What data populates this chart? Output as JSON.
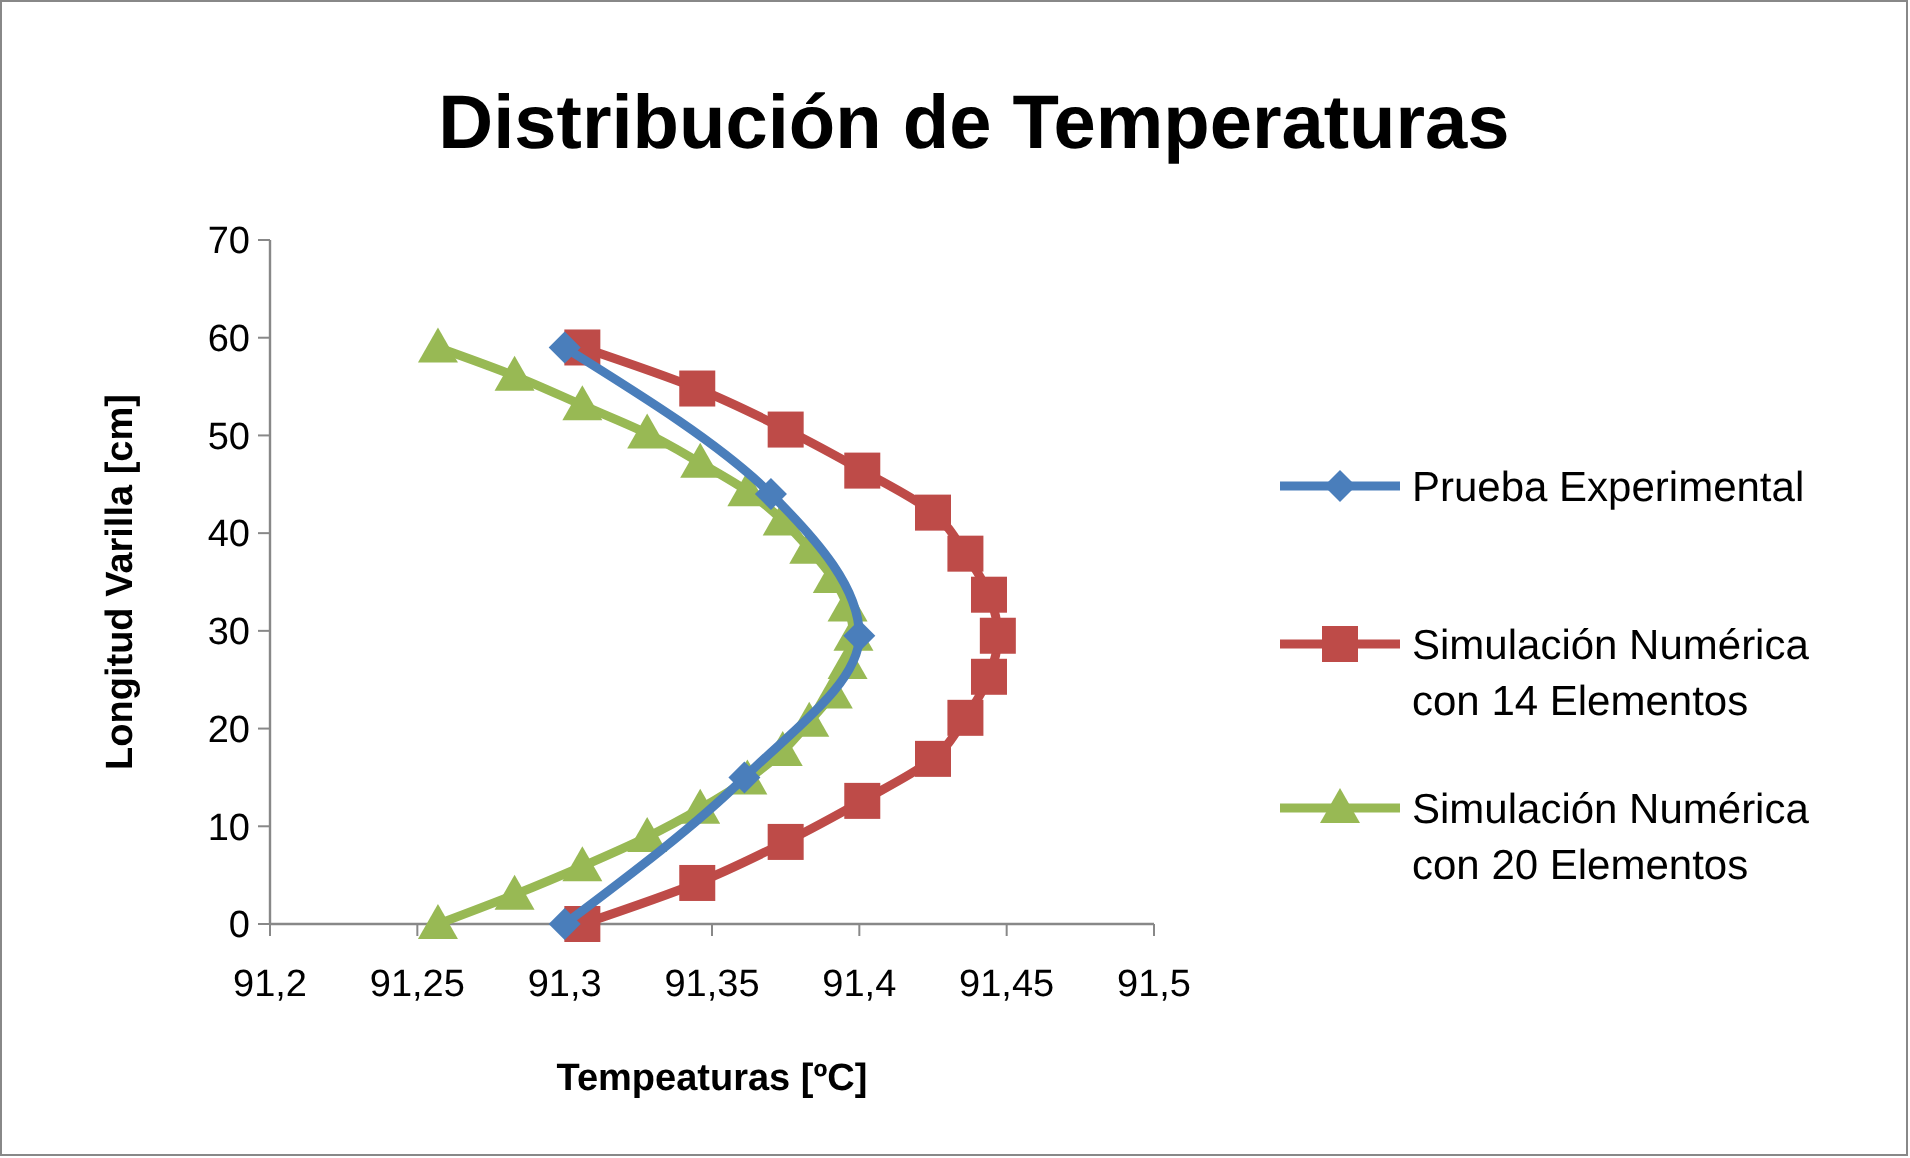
{
  "chart_data": {
    "type": "line",
    "title": "Distribución de Temperaturas",
    "xlabel": "Tempeaturas [ºC]",
    "ylabel": "Longitud Varilla [cm]",
    "xlim": [
      91.2,
      91.5
    ],
    "xticks": [
      {
        "value": 91.2,
        "label": "91,2"
      },
      {
        "value": 91.25,
        "label": "91,25"
      },
      {
        "value": 91.3,
        "label": "91,3"
      },
      {
        "value": 91.35,
        "label": "91,35"
      },
      {
        "value": 91.4,
        "label": "91,4"
      },
      {
        "value": 91.45,
        "label": "91,45"
      },
      {
        "value": 91.5,
        "label": "91,5"
      }
    ],
    "ylim": [
      0,
      70
    ],
    "yticks": [
      0,
      10,
      20,
      30,
      40,
      50,
      60,
      70
    ],
    "legend": "right",
    "series": [
      {
        "name": "Prueba Experimental",
        "color": "#4a7ebb",
        "marker": "diamond",
        "x": [
          91.3,
          91.361,
          91.4,
          91.37,
          91.3
        ],
        "values": [
          0,
          15,
          29.5,
          44,
          59
        ]
      },
      {
        "name": "Simulación Numérica con 14 Elementos",
        "color": "#be4b48",
        "marker": "square",
        "x": [
          91.306,
          91.345,
          91.375,
          91.401,
          91.425,
          91.436,
          91.444,
          91.447,
          91.444,
          91.436,
          91.425,
          91.401,
          91.375,
          91.345,
          91.306
        ],
        "values": [
          0,
          4.2,
          8.4,
          12.6,
          16.9,
          21.1,
          25.3,
          29.5,
          33.7,
          37.9,
          42.1,
          46.4,
          50.6,
          54.8,
          59
        ]
      },
      {
        "name": "Simulación Numérica con 20 Elementos",
        "color": "#98b954",
        "marker": "triangle",
        "x": [
          91.257,
          91.283,
          91.306,
          91.328,
          91.346,
          91.362,
          91.374,
          91.383,
          91.391,
          91.396,
          91.398,
          91.396,
          91.391,
          91.383,
          91.374,
          91.362,
          91.346,
          91.328,
          91.306,
          91.283,
          91.257
        ],
        "values": [
          0,
          3,
          5.9,
          8.9,
          11.8,
          14.8,
          17.7,
          20.7,
          23.6,
          26.6,
          29.5,
          32.5,
          35.4,
          38.4,
          41.3,
          44.3,
          47.2,
          50.2,
          53.1,
          56.1,
          59
        ]
      }
    ]
  }
}
